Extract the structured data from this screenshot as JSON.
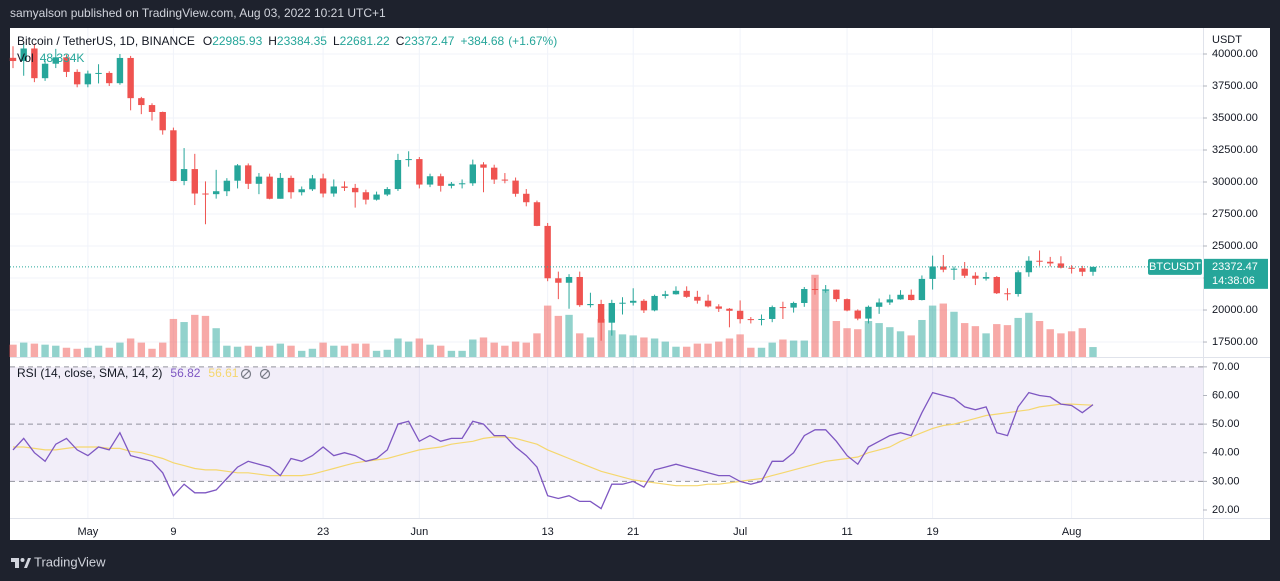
{
  "header": {
    "text": "samyalson published on TradingView.com, Aug 03, 2022 10:21 UTC+1"
  },
  "footer": {
    "brand": "TradingView"
  },
  "chart_data": [
    {
      "type": "candlestick",
      "title": "Bitcoin / TetherUS, 1D, BINANCE",
      "legend_keys": [
        "O",
        "H",
        "L",
        "C"
      ],
      "change_label": "+384.68",
      "change_pct_label": "(+1.67%)",
      "symbol": "BTCUSDT",
      "countdown": "14:38:06",
      "y_unit": "USDT",
      "up_color": "#26a69a",
      "down_color": "#ef5350",
      "grid": true,
      "x": [
        "2022-04-24",
        "2022-04-25",
        "2022-04-26",
        "2022-04-27",
        "2022-04-28",
        "2022-04-29",
        "2022-04-30",
        "2022-05-01",
        "2022-05-02",
        "2022-05-03",
        "2022-05-04",
        "2022-05-05",
        "2022-05-06",
        "2022-05-07",
        "2022-05-08",
        "2022-05-09",
        "2022-05-10",
        "2022-05-11",
        "2022-05-12",
        "2022-05-13",
        "2022-05-14",
        "2022-05-15",
        "2022-05-16",
        "2022-05-17",
        "2022-05-18",
        "2022-05-19",
        "2022-05-20",
        "2022-05-21",
        "2022-05-22",
        "2022-05-23",
        "2022-05-24",
        "2022-05-25",
        "2022-05-26",
        "2022-05-27",
        "2022-05-28",
        "2022-05-29",
        "2022-05-30",
        "2022-05-31",
        "2022-06-01",
        "2022-06-02",
        "2022-06-03",
        "2022-06-04",
        "2022-06-05",
        "2022-06-06",
        "2022-06-07",
        "2022-06-08",
        "2022-06-09",
        "2022-06-10",
        "2022-06-11",
        "2022-06-12",
        "2022-06-13",
        "2022-06-14",
        "2022-06-15",
        "2022-06-16",
        "2022-06-17",
        "2022-06-18",
        "2022-06-19",
        "2022-06-20",
        "2022-06-21",
        "2022-06-22",
        "2022-06-23",
        "2022-06-24",
        "2022-06-25",
        "2022-06-26",
        "2022-06-27",
        "2022-06-28",
        "2022-06-29",
        "2022-06-30",
        "2022-07-01",
        "2022-07-02",
        "2022-07-03",
        "2022-07-04",
        "2022-07-05",
        "2022-07-06",
        "2022-07-07",
        "2022-07-08",
        "2022-07-09",
        "2022-07-10",
        "2022-07-11",
        "2022-07-12",
        "2022-07-13",
        "2022-07-14",
        "2022-07-15",
        "2022-07-16",
        "2022-07-17",
        "2022-07-18",
        "2022-07-19",
        "2022-07-20",
        "2022-07-21",
        "2022-07-22",
        "2022-07-23",
        "2022-07-24",
        "2022-07-25",
        "2022-07-26",
        "2022-07-27",
        "2022-07-28",
        "2022-07-29",
        "2022-07-30",
        "2022-07-31",
        "2022-08-01",
        "2022-08-02",
        "2022-08-03"
      ],
      "open": [
        39700,
        39450,
        40430,
        38110,
        39240,
        39740,
        38600,
        37630,
        38470,
        38520,
        37720,
        39690,
        36550,
        36010,
        35470,
        34040,
        30080,
        31010,
        29100,
        29050,
        29280,
        30100,
        31300,
        29860,
        30420,
        28690,
        30320,
        29200,
        29430,
        30280,
        29100,
        29650,
        29540,
        29200,
        28620,
        29020,
        29450,
        31720,
        31790,
        29800,
        30450,
        29700,
        29860,
        29900,
        31370,
        31120,
        30190,
        30110,
        29080,
        28420,
        26570,
        22480,
        22130,
        22580,
        20380,
        20470,
        19010,
        20550,
        20570,
        20720,
        19970,
        21100,
        21230,
        21500,
        21030,
        20730,
        20280,
        20100,
        19940,
        19290,
        19240,
        19300,
        20230,
        20190,
        20550,
        21640,
        21580,
        21590,
        20850,
        19960,
        19330,
        20250,
        20590,
        20830,
        21190,
        20780,
        22430,
        23400,
        23150,
        23230,
        22680,
        22450,
        22580,
        21310,
        21250,
        22950,
        23850,
        23770,
        23640,
        23300,
        23270,
        22985.93
      ],
      "high": [
        40600,
        40800,
        40800,
        39500,
        40400,
        39950,
        38800,
        38700,
        39200,
        38650,
        40000,
        39850,
        36650,
        36150,
        35500,
        34250,
        32650,
        32200,
        30050,
        30950,
        30300,
        31400,
        31450,
        30700,
        30650,
        30700,
        30500,
        29650,
        30550,
        30650,
        30200,
        30050,
        29850,
        29400,
        29250,
        29600,
        32200,
        32400,
        31950,
        30650,
        30650,
        30000,
        30200,
        31750,
        31550,
        31350,
        30700,
        30350,
        29450,
        28550,
        26800,
        23000,
        22800,
        23000,
        21350,
        20800,
        20800,
        21000,
        21700,
        20850,
        21200,
        21500,
        21850,
        21850,
        21500,
        21200,
        20450,
        20150,
        20750,
        19450,
        19650,
        20350,
        20650,
        20650,
        21800,
        22500,
        21950,
        21600,
        20900,
        20050,
        20350,
        20900,
        21200,
        21550,
        21600,
        22700,
        24250,
        24300,
        23400,
        23750,
        22950,
        22950,
        22650,
        21700,
        23100,
        24200,
        24650,
        24150,
        24200,
        23500,
        23450,
        23384.35
      ],
      "low": [
        38900,
        38300,
        37800,
        37900,
        38900,
        38200,
        37400,
        37400,
        37700,
        37500,
        37600,
        35600,
        35300,
        34800,
        33700,
        30050,
        29750,
        28200,
        26700,
        28700,
        28900,
        29500,
        29450,
        29050,
        28650,
        28700,
        28700,
        28950,
        29300,
        28800,
        28850,
        29300,
        28000,
        28250,
        28550,
        28900,
        29300,
        31200,
        29500,
        29600,
        29250,
        29500,
        29500,
        29700,
        29200,
        29850,
        29900,
        28850,
        28100,
        26550,
        22250,
        20850,
        20100,
        20250,
        20200,
        17600,
        18000,
        19650,
        20350,
        19770,
        19900,
        20900,
        21200,
        20950,
        20500,
        20200,
        19850,
        18650,
        18950,
        18950,
        18800,
        19050,
        19300,
        19800,
        20250,
        21200,
        21350,
        20650,
        19900,
        19200,
        18950,
        19700,
        20400,
        20800,
        20750,
        20750,
        21600,
        22950,
        22350,
        22500,
        21950,
        22300,
        21250,
        20750,
        21050,
        22600,
        23450,
        23400,
        23250,
        22850,
        22650,
        22681.22
      ],
      "close": [
        39450,
        40430,
        38110,
        39240,
        39740,
        38600,
        37630,
        38470,
        38520,
        37720,
        39690,
        36550,
        36010,
        35470,
        34040,
        30080,
        31010,
        29100,
        29050,
        29280,
        30100,
        31300,
        29860,
        30420,
        28690,
        30320,
        29200,
        29430,
        30280,
        29100,
        29650,
        29540,
        29200,
        28620,
        29020,
        29450,
        31720,
        31790,
        29800,
        30450,
        29700,
        29860,
        29900,
        31370,
        31120,
        30190,
        30110,
        29080,
        28420,
        26570,
        22480,
        22130,
        22580,
        20380,
        20470,
        19010,
        20550,
        20570,
        20720,
        19970,
        21100,
        21230,
        21500,
        21030,
        20730,
        20280,
        20100,
        19940,
        19290,
        19240,
        19300,
        20230,
        20190,
        20550,
        21640,
        21580,
        21590,
        20850,
        19960,
        19330,
        20250,
        20590,
        20830,
        21190,
        20780,
        22430,
        23400,
        23150,
        23230,
        22680,
        22450,
        22580,
        21310,
        21250,
        22950,
        23850,
        23770,
        23640,
        23300,
        23270,
        22987.79,
        23372.47
      ],
      "volume": {
        "name": "Vol",
        "last_value_label": "48.334K",
        "ylim": [
          0,
          1600
        ],
        "values": [
          60,
          70,
          65,
          60,
          55,
          45,
          40,
          45,
          55,
          45,
          70,
          90,
          70,
          40,
          70,
          185,
          170,
          205,
          200,
          140,
          55,
          50,
          55,
          50,
          55,
          65,
          55,
          30,
          40,
          70,
          55,
          55,
          65,
          65,
          30,
          35,
          90,
          75,
          90,
          60,
          55,
          30,
          30,
          85,
          95,
          70,
          55,
          75,
          70,
          115,
          250,
          200,
          205,
          115,
          95,
          185,
          130,
          110,
          105,
          95,
          90,
          75,
          50,
          50,
          65,
          65,
          75,
          90,
          110,
          45,
          45,
          70,
          85,
          80,
          80,
          400,
          330,
          175,
          140,
          135,
          175,
          165,
          145,
          125,
          105,
          180,
          250,
          260,
          220,
          165,
          150,
          115,
          160,
          155,
          190,
          215,
          175,
          135,
          115,
          125,
          140,
          48.334
        ]
      },
      "ylim": [
        16330,
        42030
      ],
      "yticks": [
        {
          "value": 40000,
          "label": "40000.00"
        },
        {
          "value": 37500,
          "label": "37500.00"
        },
        {
          "value": 35000,
          "label": "35000.00"
        },
        {
          "value": 32500,
          "label": "32500.00"
        },
        {
          "value": 30000,
          "label": "30000.00"
        },
        {
          "value": 27500,
          "label": "27500.00"
        },
        {
          "value": 25000,
          "label": "25000.00"
        },
        {
          "value": 22500,
          "label": "22500.00"
        },
        {
          "value": 20000,
          "label": "20000.00"
        },
        {
          "value": 17500,
          "label": "17500.00"
        }
      ],
      "xticks": [
        {
          "value": "2022-05-01",
          "label": "May"
        },
        {
          "value": "2022-05-09",
          "label": "9"
        },
        {
          "value": "2022-05-23",
          "label": "23"
        },
        {
          "value": "2022-06-01",
          "label": "Jun"
        },
        {
          "value": "2022-06-13",
          "label": "13"
        },
        {
          "value": "2022-06-21",
          "label": "21"
        },
        {
          "value": "2022-07-01",
          "label": "Jul"
        },
        {
          "value": "2022-07-11",
          "label": "11"
        },
        {
          "value": "2022-07-19",
          "label": "19"
        },
        {
          "value": "2022-08-01",
          "label": "Aug"
        }
      ]
    },
    {
      "type": "line",
      "title": "RSI (14, close, SMA, 14, 2)",
      "bands": [
        70,
        50,
        30
      ],
      "band_color": "#7e57c2",
      "series": [
        {
          "color": "#7e57c2",
          "values": [
            41,
            45,
            40,
            37,
            43,
            45,
            41,
            39,
            42,
            41,
            47,
            39,
            38,
            37,
            33,
            25,
            29,
            26,
            26,
            27,
            31,
            35,
            37,
            36,
            35,
            32,
            38,
            37,
            39,
            42,
            39,
            40,
            39,
            37,
            38,
            41,
            50,
            51,
            44,
            46,
            44,
            45,
            45,
            51,
            50,
            46,
            46,
            42,
            39,
            35,
            25,
            24,
            25,
            23,
            23,
            20.5,
            29,
            29,
            30,
            28,
            34,
            35,
            36,
            35,
            34,
            33,
            32,
            32,
            30,
            29,
            30,
            37,
            37,
            40,
            46,
            48,
            48,
            44,
            39,
            36,
            42,
            44,
            46,
            47,
            46,
            54,
            61,
            60,
            59,
            56,
            55,
            56,
            47,
            46,
            56,
            61,
            60,
            59.5,
            57,
            56.5,
            54,
            56.82
          ]
        },
        {
          "color": "#f5d76e",
          "values": [
            42,
            42,
            41.5,
            41,
            41,
            41.5,
            42,
            42,
            42,
            41.5,
            41.5,
            40.5,
            40,
            39,
            38,
            36.5,
            35.5,
            34.5,
            34,
            34,
            33.5,
            33,
            33,
            32.5,
            32,
            32,
            32,
            32,
            32.5,
            33.5,
            34.5,
            35.5,
            36.5,
            37,
            37.5,
            38,
            39,
            40,
            41,
            41.5,
            42,
            43,
            43.5,
            44,
            45,
            45.5,
            45.5,
            45,
            44,
            43,
            41,
            39.5,
            38,
            36.5,
            35,
            33.5,
            32.5,
            31.5,
            30.5,
            30,
            29.5,
            29,
            28.5,
            28.5,
            28.5,
            29,
            29,
            29.5,
            30,
            30.5,
            31,
            32,
            33,
            34,
            35,
            36,
            37,
            37.5,
            38,
            38.5,
            40,
            41,
            42,
            44,
            45.5,
            47,
            48.5,
            49.5,
            50,
            51,
            52,
            53,
            53.5,
            54,
            54.5,
            55,
            56,
            56.5,
            57,
            57,
            56.8,
            56.61
          ]
        }
      ],
      "ylim": [
        17.2,
        73.1
      ],
      "yticks": [
        {
          "value": 70,
          "label": "70.00"
        },
        {
          "value": 60,
          "label": "60.00"
        },
        {
          "value": 50,
          "label": "50.00"
        },
        {
          "value": 40,
          "label": "40.00"
        },
        {
          "value": 30,
          "label": "30.00"
        },
        {
          "value": 20,
          "label": "20.00"
        }
      ]
    }
  ]
}
